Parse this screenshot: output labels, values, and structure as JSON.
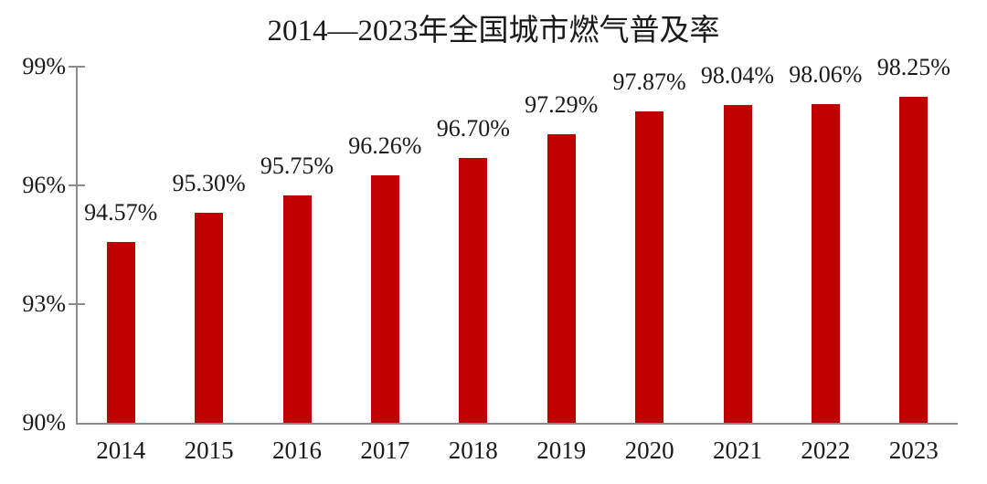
{
  "colors": {
    "bar": "#c00000",
    "axis": "#8c8c8c",
    "text": "#1a1a1a",
    "background": "#ffffff"
  },
  "chart_data": {
    "type": "bar",
    "title": "2014—2023年全国城市燃气普及率",
    "categories": [
      "2014",
      "2015",
      "2016",
      "2017",
      "2018",
      "2019",
      "2020",
      "2021",
      "2022",
      "2023"
    ],
    "values": [
      94.57,
      95.3,
      95.75,
      96.26,
      96.7,
      97.29,
      97.87,
      98.04,
      98.06,
      98.25
    ],
    "value_labels": [
      "94.57%",
      "95.30%",
      "95.75%",
      "96.26%",
      "96.70%",
      "97.29%",
      "97.87%",
      "98.04%",
      "98.06%",
      "98.25%"
    ],
    "xlabel": "",
    "ylabel": "",
    "ylim": [
      90,
      99
    ],
    "yticks": [
      {
        "value": 99,
        "label": "99%"
      },
      {
        "value": 96,
        "label": "96%"
      },
      {
        "value": 93,
        "label": "93%"
      },
      {
        "value": 90,
        "label": "90%"
      }
    ],
    "grid": false,
    "legend": null,
    "series_color": "#c00000"
  }
}
